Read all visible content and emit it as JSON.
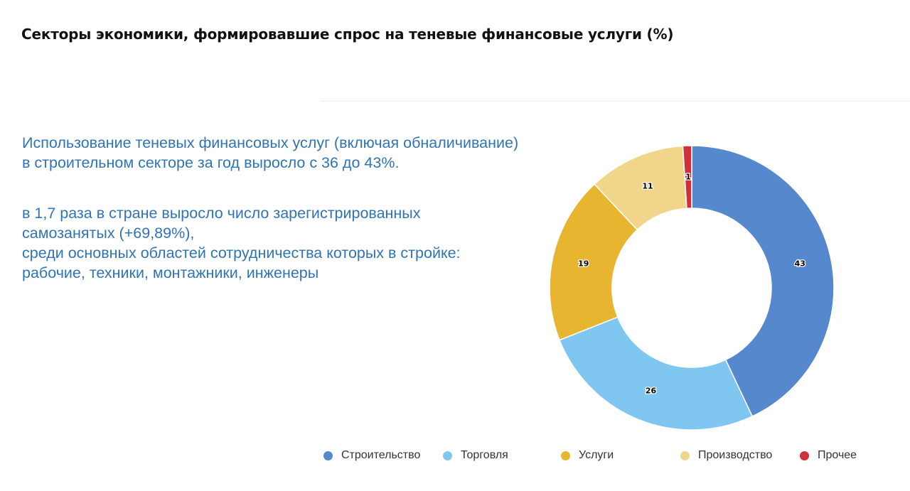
{
  "title": "Секторы экономики, формировавшие спрос на теневые финансовые услуги (%)",
  "text_blocks": [
    {
      "lines": [
        "Использование теневых финансовых услуг (включая обналичивание)",
        "в строительном секторе за год выросло с 36 до 43%."
      ]
    },
    {
      "lines": [
        "в 1,7 раза в стране выросло число зарегистрированных",
        "самозанятых (+69,89%),",
        "среди основных областей сотрудничества которых в стройке:",
        "рабочие, техники, монтажники, инженеры"
      ]
    }
  ],
  "colors": {
    "text_accent": "#2f74b5",
    "Строительство": "#5588cc",
    "Торговля": "#7fc6f0",
    "Услуги": "#e8b531",
    "Производство": "#f0d58a",
    "Прочее": "#d0303a"
  },
  "chart_data": {
    "type": "pie",
    "subtype": "donut",
    "title": "Секторы экономики, формировавшие спрос на теневые финансовые услуги (%)",
    "categories": [
      "Строительство",
      "Торговля",
      "Услуги",
      "Производство",
      "Прочее"
    ],
    "values": [
      43,
      26,
      19,
      11,
      1
    ],
    "value_labels": [
      "43",
      "26",
      "19",
      "11",
      "1"
    ],
    "start": "top, clockwise",
    "legend_position": "bottom"
  }
}
